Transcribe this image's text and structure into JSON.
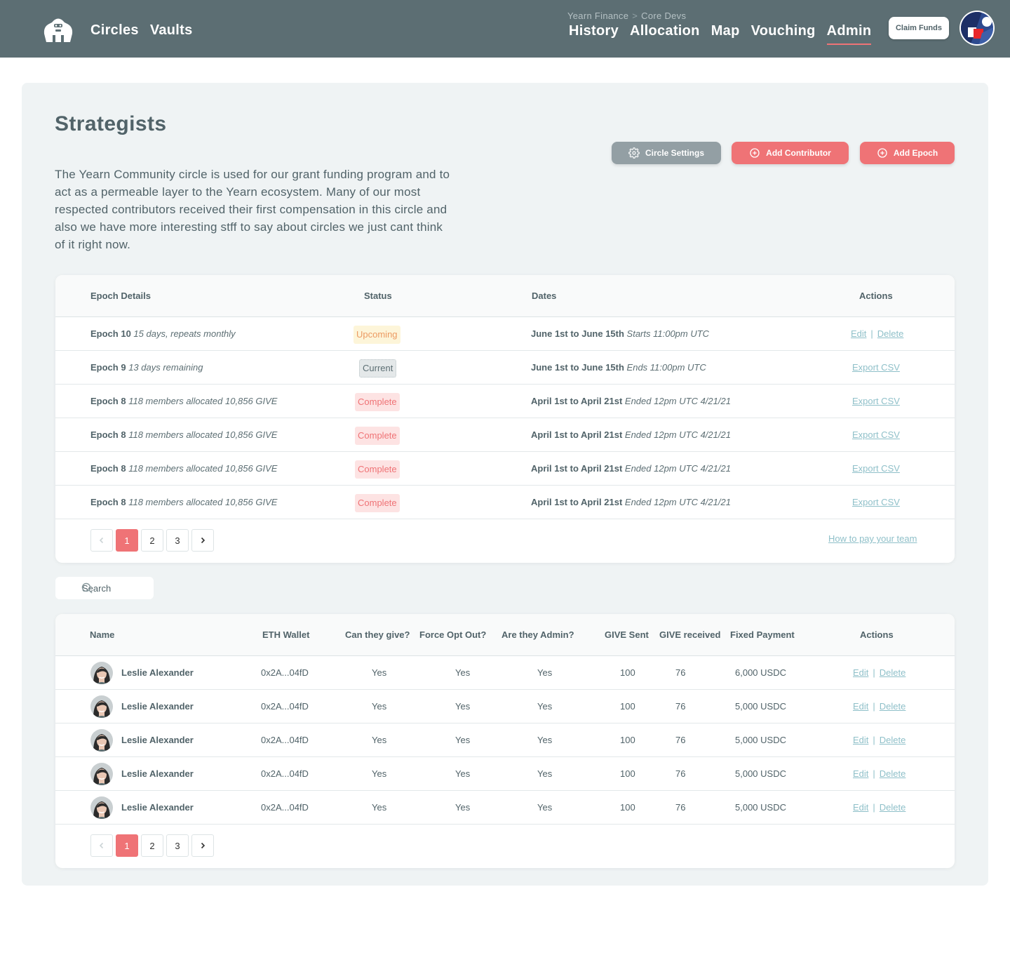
{
  "nav": {
    "main": [
      "Circles",
      "Vaults"
    ],
    "breadcrumb": {
      "org": "Yearn Finance",
      "separator": ">",
      "circle": "Core Devs"
    },
    "circle_links": [
      "History",
      "Allocation",
      "Map",
      "Vouching",
      "Admin"
    ],
    "active_link": "Admin",
    "claim_label": "Claim Funds"
  },
  "page": {
    "title": "Strategists",
    "description": "The Yearn Community circle is used for our grant funding program and to act as a permeable layer to the Yearn ecosystem. Many of our most respected contributors received their first compensation in this circle and also we have more interesting stff to say about circles we just cant think of it right now.",
    "buttons": {
      "settings": "Circle Settings",
      "add_contributor": "Add Contributor",
      "add_epoch": "Add Epoch"
    }
  },
  "epochs": {
    "headers": {
      "details": "Epoch Details",
      "status": "Status",
      "dates": "Dates",
      "actions": "Actions"
    },
    "rows": [
      {
        "name": "Epoch 10",
        "info": "15 days, repeats monthly",
        "status": "Upcoming",
        "status_type": "upcoming",
        "dates": "June 1st to June 15th",
        "dates_note": "Starts 11:00pm UTC",
        "actions": [
          "Edit",
          "Delete"
        ]
      },
      {
        "name": "Epoch 9",
        "info": "13 days remaining",
        "status": "Current",
        "status_type": "current",
        "dates": "June 1st to June 15th",
        "dates_note": "Ends 11:00pm UTC",
        "actions": [
          "Export CSV"
        ]
      },
      {
        "name": "Epoch 8",
        "info": "118 members allocated 10,856 GIVE",
        "status": "Complete",
        "status_type": "complete",
        "dates": "April 1st to April 21st",
        "dates_note": "Ended 12pm UTC 4/21/21",
        "actions": [
          "Export CSV"
        ]
      },
      {
        "name": "Epoch 8",
        "info": "118 members allocated 10,856 GIVE",
        "status": "Complete",
        "status_type": "complete",
        "dates": "April 1st to April 21st",
        "dates_note": "Ended 12pm UTC 4/21/21",
        "actions": [
          "Export CSV"
        ]
      },
      {
        "name": "Epoch 8",
        "info": "118 members allocated 10,856 GIVE",
        "status": "Complete",
        "status_type": "complete",
        "dates": "April 1st to April 21st",
        "dates_note": "Ended 12pm UTC 4/21/21",
        "actions": [
          "Export CSV"
        ]
      },
      {
        "name": "Epoch 8",
        "info": "118 members allocated 10,856 GIVE",
        "status": "Complete",
        "status_type": "complete",
        "dates": "April 1st to April 21st",
        "dates_note": "Ended 12pm UTC 4/21/21",
        "actions": [
          "Export CSV"
        ]
      }
    ],
    "pagination": {
      "pages": [
        "1",
        "2",
        "3"
      ],
      "current": "1"
    },
    "help_link": "How to pay your team"
  },
  "search": {
    "placeholder": "Search"
  },
  "users": {
    "headers": {
      "name": "Name",
      "wallet": "ETH Wallet",
      "give": "Can they give?",
      "opt_out": "Force Opt Out?",
      "admin": "Are they Admin?",
      "sent": "GIVE Sent",
      "received": "GIVE received",
      "fixed": "Fixed Payment",
      "actions": "Actions"
    },
    "rows": [
      {
        "name": "Leslie Alexander",
        "wallet": "0x2A...04fD",
        "give": "Yes",
        "opt_out": "Yes",
        "admin": "Yes",
        "sent": "100",
        "received": "76",
        "fixed": "6,000 USDC"
      },
      {
        "name": "Leslie Alexander",
        "wallet": "0x2A...04fD",
        "give": "Yes",
        "opt_out": "Yes",
        "admin": "Yes",
        "sent": "100",
        "received": "76",
        "fixed": "5,000 USDC"
      },
      {
        "name": "Leslie Alexander",
        "wallet": "0x2A...04fD",
        "give": "Yes",
        "opt_out": "Yes",
        "admin": "Yes",
        "sent": "100",
        "received": "76",
        "fixed": "5,000 USDC"
      },
      {
        "name": "Leslie Alexander",
        "wallet": "0x2A...04fD",
        "give": "Yes",
        "opt_out": "Yes",
        "admin": "Yes",
        "sent": "100",
        "received": "76",
        "fixed": "5,000 USDC"
      },
      {
        "name": "Leslie Alexander",
        "wallet": "0x2A...04fD",
        "give": "Yes",
        "opt_out": "Yes",
        "admin": "Yes",
        "sent": "100",
        "received": "76",
        "fixed": "5,000 USDC"
      }
    ],
    "row_actions": [
      "Edit",
      "Delete"
    ],
    "pagination": {
      "pages": [
        "1",
        "2",
        "3"
      ],
      "current": "1"
    }
  },
  "colors": {
    "header": "#5c6e73",
    "accent": "#ef7376",
    "link": "#8fc0c9",
    "panel": "#eff3f4",
    "muted_button": "#939fa4"
  },
  "icons": {
    "logo": "gorilla-logo-icon",
    "settings": "gear-icon",
    "add": "plus-circle-icon",
    "search": "search-icon",
    "prev": "chevron-left-icon",
    "next": "chevron-right-icon"
  }
}
